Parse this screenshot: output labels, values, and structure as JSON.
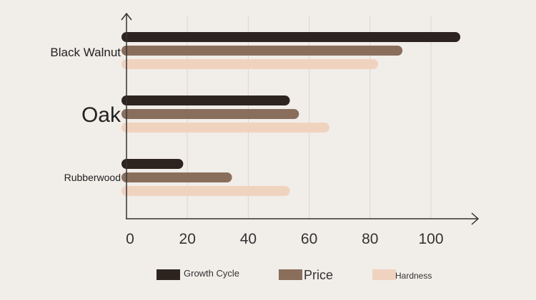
{
  "chart_data": {
    "type": "bar",
    "orientation": "horizontal",
    "title": "",
    "xlabel": "",
    "ylabel": "",
    "xlim": [
      0,
      115
    ],
    "x_ticks": [
      0,
      20,
      40,
      60,
      80,
      100
    ],
    "grid": "vertical",
    "legend_position": "bottom",
    "categories": [
      "Black Walnut",
      "Oak",
      "Rubberwood"
    ],
    "series": [
      {
        "name": "Growth Cycle",
        "color": "#2d2420",
        "values": [
          108,
          52,
          17
        ]
      },
      {
        "name": "Price",
        "color": "#8a6e5c",
        "values": [
          89,
          55,
          33
        ]
      },
      {
        "name": "Hardness",
        "color": "#f0d3bf",
        "values": [
          81,
          65,
          52
        ]
      }
    ]
  }
}
